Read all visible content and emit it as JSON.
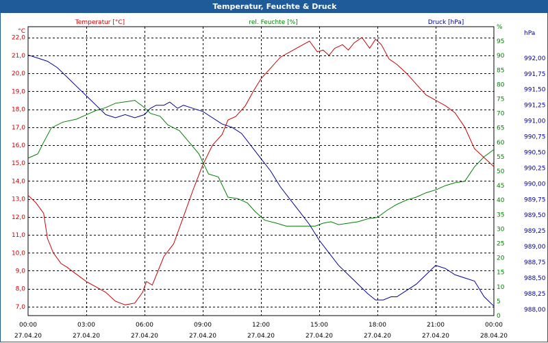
{
  "window": {
    "title": "Temperatur, Feuchte & Druck"
  },
  "chart_data": {
    "type": "line",
    "title": "Temperatur, Feuchte & Druck",
    "grid": true,
    "colors": {
      "temperature": "#cc0000",
      "humidity": "#008000",
      "pressure": "#000099",
      "titlebar": "#1f5a99"
    },
    "x_ticks": [
      {
        "time": "00:00",
        "date": "27.04.20"
      },
      {
        "time": "03:00",
        "date": "27.04.20"
      },
      {
        "time": "06:00",
        "date": "27.04.20"
      },
      {
        "time": "09:00",
        "date": "27.04.20"
      },
      {
        "time": "12:00",
        "date": "27.04.20"
      },
      {
        "time": "15:00",
        "date": "27.04.20"
      },
      {
        "time": "18:00",
        "date": "27.04.20"
      },
      {
        "time": "21:00",
        "date": "27.04.20"
      },
      {
        "time": "00:00",
        "date": "28.04.20"
      }
    ],
    "x_range_hours": [
      0,
      24
    ],
    "axes": {
      "temperature": {
        "unit": "°C",
        "range": [
          6.5,
          22.6
        ],
        "ticks": [
          "7,0",
          "8,0",
          "9,0",
          "10,0",
          "11,0",
          "12,0",
          "13,0",
          "14,0",
          "15,0",
          "16,0",
          "17,0",
          "18,0",
          "19,0",
          "20,0",
          "21,0",
          "22,0"
        ],
        "tick_values": [
          7,
          8,
          9,
          10,
          11,
          12,
          13,
          14,
          15,
          16,
          17,
          18,
          19,
          20,
          21,
          22
        ]
      },
      "humidity": {
        "unit": "%",
        "range": [
          0,
          100
        ],
        "ticks": [
          "0",
          "5",
          "10",
          "15",
          "20",
          "25",
          "30",
          "35",
          "40",
          "45",
          "50",
          "55",
          "60",
          "65",
          "70",
          "75",
          "80",
          "85",
          "90",
          "95",
          "%"
        ],
        "tick_values": [
          0,
          5,
          10,
          15,
          20,
          25,
          30,
          35,
          40,
          45,
          50,
          55,
          60,
          65,
          70,
          75,
          80,
          85,
          90,
          95,
          100
        ]
      },
      "pressure": {
        "unit": "hPa",
        "range": [
          987.9,
          992.5
        ],
        "ticks": [
          "988,00",
          "988,25",
          "988,50",
          "988,75",
          "989,00",
          "989,25",
          "989,50",
          "989,75",
          "990,00",
          "990,25",
          "990,50",
          "990,75",
          "991,00",
          "991,25",
          "991,50",
          "991,75",
          "992,00",
          "hPa"
        ],
        "tick_values": [
          988,
          988.25,
          988.5,
          988.75,
          989,
          989.25,
          989.5,
          989.75,
          990,
          990.25,
          990.5,
          990.75,
          991,
          991.25,
          991.5,
          991.75,
          992,
          992.4
        ]
      }
    },
    "series": [
      {
        "name": "Temperatur [°C]",
        "axis": "temperature",
        "color": "#cc0000",
        "points": [
          [
            0,
            13.2
          ],
          [
            0.4,
            12.8
          ],
          [
            0.8,
            12.2
          ],
          [
            1,
            10.8
          ],
          [
            1.3,
            10.0
          ],
          [
            1.7,
            9.4
          ],
          [
            2,
            9.2
          ],
          [
            2.5,
            8.8
          ],
          [
            3,
            8.4
          ],
          [
            3.5,
            8.1
          ],
          [
            4,
            7.8
          ],
          [
            4.5,
            7.3
          ],
          [
            5,
            7.1
          ],
          [
            5.5,
            7.2
          ],
          [
            5.9,
            7.8
          ],
          [
            6.1,
            8.4
          ],
          [
            6.4,
            8.2
          ],
          [
            6.7,
            9.0
          ],
          [
            7,
            9.8
          ],
          [
            7.5,
            10.5
          ],
          [
            8,
            12.0
          ],
          [
            8.5,
            13.5
          ],
          [
            9,
            14.9
          ],
          [
            9.5,
            16.0
          ],
          [
            10,
            16.6
          ],
          [
            10.3,
            17.4
          ],
          [
            10.7,
            17.6
          ],
          [
            11.2,
            18.2
          ],
          [
            11.6,
            19.0
          ],
          [
            12,
            19.7
          ],
          [
            12.5,
            20.3
          ],
          [
            13,
            20.9
          ],
          [
            13.5,
            21.2
          ],
          [
            14,
            21.5
          ],
          [
            14.5,
            21.8
          ],
          [
            14.9,
            21.2
          ],
          [
            15.2,
            21.3
          ],
          [
            15.5,
            21.0
          ],
          [
            15.8,
            21.4
          ],
          [
            16.2,
            21.6
          ],
          [
            16.5,
            21.3
          ],
          [
            16.8,
            21.7
          ],
          [
            17.2,
            22.0
          ],
          [
            17.6,
            21.4
          ],
          [
            17.9,
            21.9
          ],
          [
            18.2,
            21.6
          ],
          [
            18.6,
            20.8
          ],
          [
            19,
            20.5
          ],
          [
            19.5,
            20.0
          ],
          [
            20,
            19.4
          ],
          [
            20.5,
            18.8
          ],
          [
            21,
            18.5
          ],
          [
            21.5,
            18.2
          ],
          [
            22,
            17.8
          ],
          [
            22.5,
            17.0
          ],
          [
            23,
            15.8
          ],
          [
            23.5,
            15.3
          ],
          [
            24,
            14.8
          ]
        ]
      },
      {
        "name": "rel. Feuchte [%]",
        "axis": "humidity",
        "color": "#008000",
        "points": [
          [
            0,
            54.5
          ],
          [
            0.5,
            56
          ],
          [
            0.8,
            60
          ],
          [
            1.2,
            65
          ],
          [
            1.8,
            67
          ],
          [
            2.5,
            68
          ],
          [
            3,
            69.5
          ],
          [
            3.5,
            71
          ],
          [
            4,
            72
          ],
          [
            4.5,
            73.5
          ],
          [
            5,
            74
          ],
          [
            5.5,
            74.5
          ],
          [
            6,
            72
          ],
          [
            6.3,
            70
          ],
          [
            6.8,
            69
          ],
          [
            7.2,
            66
          ],
          [
            7.8,
            64
          ],
          [
            8.3,
            60
          ],
          [
            8.8,
            56
          ],
          [
            9.3,
            49
          ],
          [
            9.8,
            48
          ],
          [
            10.3,
            41
          ],
          [
            10.8,
            40.5
          ],
          [
            11.3,
            39
          ],
          [
            11.7,
            36
          ],
          [
            12.2,
            33
          ],
          [
            12.8,
            32
          ],
          [
            13.3,
            31
          ],
          [
            13.8,
            31
          ],
          [
            14.3,
            31
          ],
          [
            14.8,
            31
          ],
          [
            15.2,
            32
          ],
          [
            15.6,
            32.5
          ],
          [
            16,
            31.5
          ],
          [
            16.5,
            32
          ],
          [
            17,
            32.5
          ],
          [
            17.5,
            33.5
          ],
          [
            18,
            34
          ],
          [
            18.5,
            36.5
          ],
          [
            19,
            38.5
          ],
          [
            19.5,
            40
          ],
          [
            20,
            41
          ],
          [
            20.5,
            42.5
          ],
          [
            21,
            43.5
          ],
          [
            21.5,
            45
          ],
          [
            22,
            46
          ],
          [
            22.5,
            46.5
          ],
          [
            23,
            51.5
          ],
          [
            23.5,
            55
          ],
          [
            24,
            57.5
          ]
        ]
      },
      {
        "name": "Druck [hPa]",
        "axis": "pressure",
        "color": "#000099",
        "points": [
          [
            0,
            992.05
          ],
          [
            0.5,
            992.0
          ],
          [
            1,
            991.95
          ],
          [
            1.5,
            991.85
          ],
          [
            2,
            991.7
          ],
          [
            2.5,
            991.55
          ],
          [
            3,
            991.4
          ],
          [
            3.5,
            991.25
          ],
          [
            4,
            991.1
          ],
          [
            4.5,
            991.05
          ],
          [
            5,
            991.1
          ],
          [
            5.5,
            991.05
          ],
          [
            6,
            991.1
          ],
          [
            6.3,
            991.2
          ],
          [
            6.6,
            991.25
          ],
          [
            7,
            991.25
          ],
          [
            7.3,
            991.3
          ],
          [
            7.7,
            991.2
          ],
          [
            8,
            991.25
          ],
          [
            8.5,
            991.2
          ],
          [
            9,
            991.15
          ],
          [
            9.5,
            991.05
          ],
          [
            10,
            990.95
          ],
          [
            10.5,
            990.9
          ],
          [
            11,
            990.8
          ],
          [
            11.5,
            990.6
          ],
          [
            12,
            990.4
          ],
          [
            12.5,
            990.2
          ],
          [
            13,
            989.95
          ],
          [
            13.5,
            989.75
          ],
          [
            14,
            989.55
          ],
          [
            14.5,
            989.35
          ],
          [
            15,
            989.1
          ],
          [
            15.5,
            988.9
          ],
          [
            16,
            988.7
          ],
          [
            16.5,
            988.55
          ],
          [
            17,
            988.4
          ],
          [
            17.5,
            988.25
          ],
          [
            17.9,
            988.15
          ],
          [
            18.3,
            988.15
          ],
          [
            18.7,
            988.2
          ],
          [
            19,
            988.2
          ],
          [
            19.5,
            988.3
          ],
          [
            20,
            988.4
          ],
          [
            20.5,
            988.55
          ],
          [
            21,
            988.7
          ],
          [
            21.5,
            988.65
          ],
          [
            22,
            988.55
          ],
          [
            22.5,
            988.5
          ],
          [
            23,
            988.45
          ],
          [
            23.5,
            988.2
          ],
          [
            24,
            988.05
          ]
        ]
      }
    ],
    "legend": [
      {
        "label": "Temperatur [°C]",
        "color": "#cc0000",
        "position": "top-left"
      },
      {
        "label": "rel. Feuchte [%]",
        "color": "#008000",
        "position": "top-center"
      },
      {
        "label": "Druck [hPa]",
        "color": "#000099",
        "position": "top-right"
      }
    ]
  }
}
